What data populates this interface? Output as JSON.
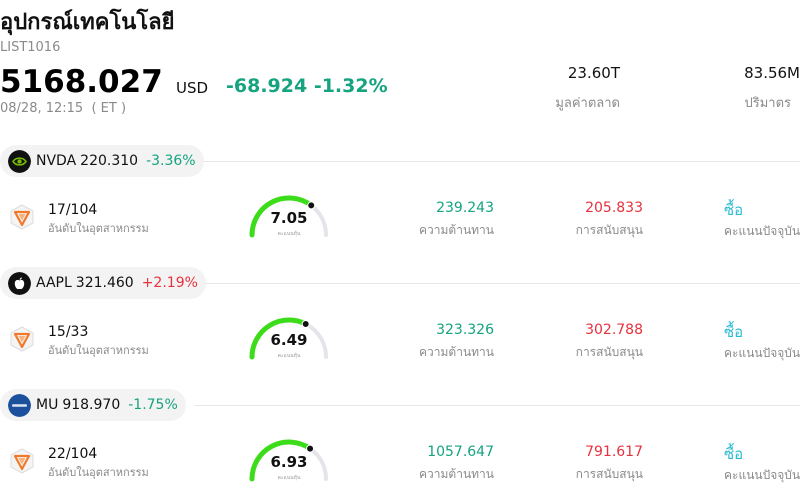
{
  "header": {
    "title": "อุปกรณ์เทคโนโลยี",
    "code": "LIST1016",
    "price": "5168.027",
    "currency": "USD",
    "change": "-68.924 -1.32%",
    "time": "08/28, 12:15  ( ET )"
  },
  "stats": [
    {
      "value": "23.60T",
      "label": "มูลค่าตลาด"
    },
    {
      "value": "83.56M",
      "label": "ปริมาตร"
    }
  ],
  "rows": [
    {
      "ticker": "NVDA",
      "price": "220.310",
      "change": "-3.36%",
      "direction": "down",
      "logo_icon": "nvidia-logo-icon",
      "rank": "17/104",
      "rank_label": "อันดับในอุตสาหกรรม",
      "score": "7.05",
      "score_fraction": 0.705,
      "score_label": "คะแนนหุ้น",
      "resistance": "239.243",
      "resistance_label": "ความต้านทาน",
      "support": "205.833",
      "support_label": "การสนับสนุน",
      "rating": "ซื้อ",
      "rating_label": "คะแนนปัจจุบัน"
    },
    {
      "ticker": "AAPL",
      "price": "321.460",
      "change": "+2.19%",
      "direction": "up",
      "logo_icon": "apple-logo-icon",
      "rank": "15/33",
      "rank_label": "อันดับในอุตสาหกรรม",
      "score": "6.49",
      "score_fraction": 0.649,
      "score_label": "คะแนนหุ้น",
      "resistance": "323.326",
      "resistance_label": "ความต้านทาน",
      "support": "302.788",
      "support_label": "การสนับสนุน",
      "rating": "ซื้อ",
      "rating_label": "คะแนนปัจจุบัน"
    },
    {
      "ticker": "MU",
      "price": "918.970",
      "change": "-1.75%",
      "direction": "down",
      "logo_icon": "micron-logo-icon",
      "rank": "22/104",
      "rank_label": "อันดับในอุตสาหกรรม",
      "score": "6.93",
      "score_fraction": 0.693,
      "score_label": "คะแนนหุ้น",
      "resistance": "1057.647",
      "resistance_label": "ความต้านทาน",
      "support": "791.617",
      "support_label": "การสนับสนุน",
      "rating": "ซื้อ",
      "rating_label": "คะแนนปัจจุบัน"
    }
  ],
  "colors": {
    "negative": "#16a37f",
    "positive": "#e8313e",
    "buy": "#2bbbd1",
    "gauge_fill": "#3ddc1a",
    "gauge_track": "#e4e4ea",
    "rank_icon": "#f07a2a"
  }
}
